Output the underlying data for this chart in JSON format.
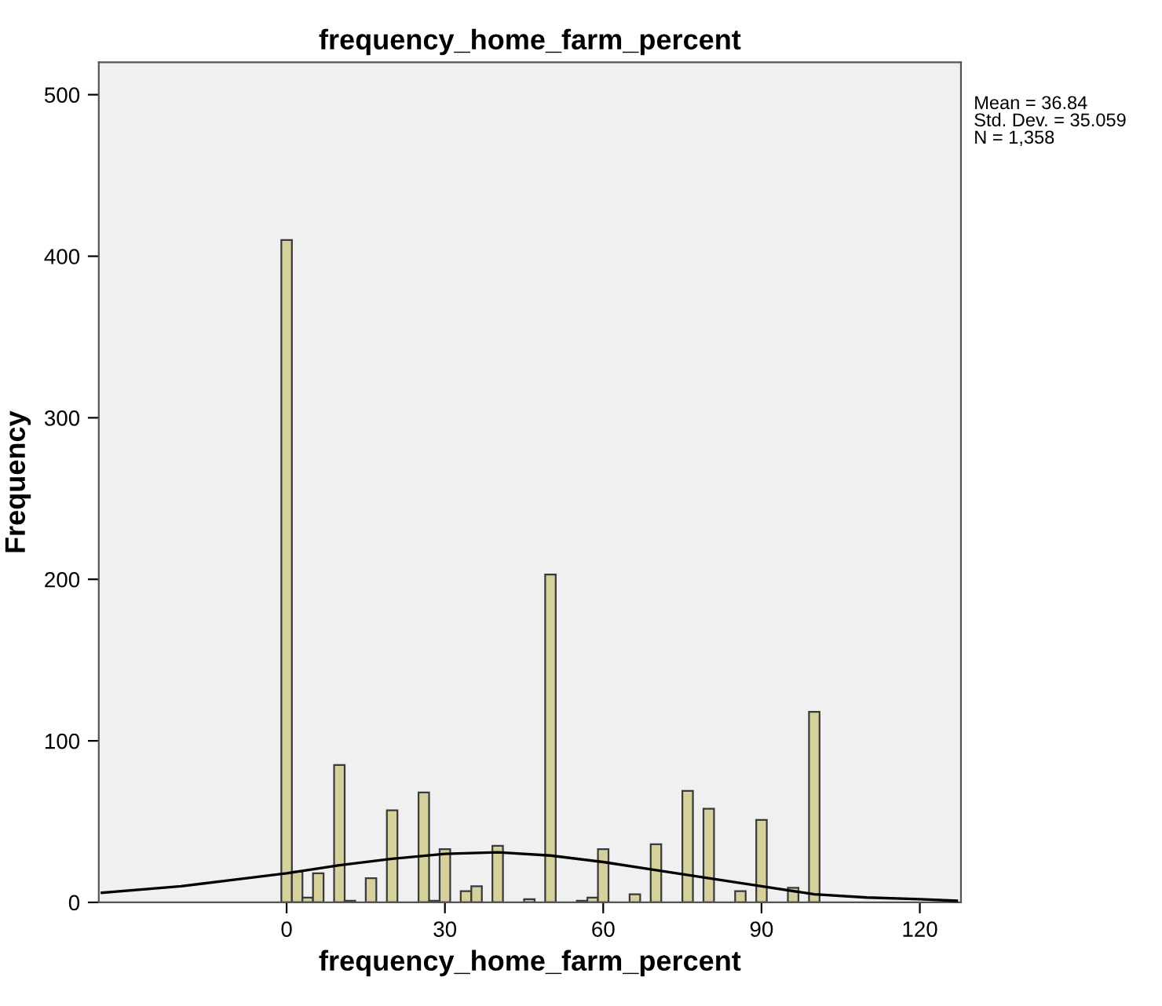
{
  "chart_data": {
    "type": "histogram",
    "title": "frequency_home_farm_percent",
    "xlabel": "frequency_home_farm_percent",
    "ylabel": "Frequency",
    "series": [
      {
        "color": "#d5d09c",
        "bins": [
          -1,
          1,
          3,
          5,
          7,
          9,
          11,
          13,
          15,
          17,
          19,
          21,
          23,
          25,
          27,
          29,
          31,
          33,
          35,
          37,
          39,
          41,
          43,
          45,
          47,
          49,
          51,
          53,
          55,
          57,
          59,
          61,
          63,
          65,
          67,
          69,
          71,
          73,
          75,
          77,
          79,
          81,
          83,
          85,
          87,
          89,
          91,
          93,
          95,
          97,
          99,
          101
        ],
        "values": [
          410,
          19,
          3,
          18,
          0,
          85,
          1,
          0,
          15,
          0,
          57,
          0,
          0,
          68,
          1,
          33,
          0,
          7,
          10,
          0,
          35,
          0,
          0,
          2,
          0,
          203,
          0,
          0,
          1,
          3,
          33,
          0,
          0,
          5,
          0,
          36,
          0,
          0,
          69,
          0,
          58,
          0,
          0,
          7,
          0,
          51,
          0,
          0,
          9,
          0,
          118
        ]
      },
      {
        "type": "line",
        "color": "#000000",
        "x": [
          -35,
          -20,
          -10,
          0,
          10,
          20,
          30,
          40,
          50,
          60,
          70,
          80,
          90,
          100,
          110,
          120,
          127
        ],
        "values": [
          6,
          10,
          14,
          18,
          23,
          27,
          30,
          31,
          29,
          25,
          20,
          15,
          10,
          5,
          3,
          2,
          1
        ]
      }
    ],
    "xlim": [
      -35.6,
      127.8
    ],
    "ylim": [
      0,
      520
    ],
    "xticks": [
      0,
      30,
      60,
      90,
      120
    ],
    "yticks": [
      0,
      100,
      200,
      300,
      400,
      500
    ],
    "grid": false,
    "annotations": [
      "Mean = 36.84",
      "Std. Dev. = 35.059",
      "N = 1,358"
    ]
  }
}
